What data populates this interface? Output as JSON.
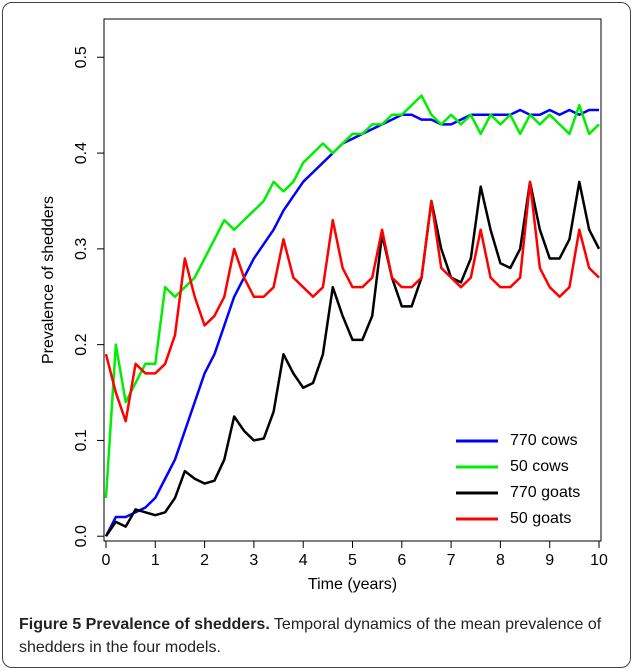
{
  "chart_data": {
    "type": "line",
    "x_label": "Time (years)",
    "y_label": "Prevalence of shedders",
    "x": [
      0,
      0.2,
      0.4,
      0.6,
      0.8,
      1,
      1.2,
      1.4,
      1.6,
      1.8,
      2,
      2.2,
      2.4,
      2.6,
      2.8,
      3,
      3.2,
      3.4,
      3.6,
      3.8,
      4,
      4.2,
      4.4,
      4.6,
      4.8,
      5,
      5.2,
      5.4,
      5.6,
      5.8,
      6,
      6.2,
      6.4,
      6.6,
      6.8,
      7,
      7.2,
      7.4,
      7.6,
      7.8,
      8,
      8.2,
      8.4,
      8.6,
      8.8,
      9,
      9.2,
      9.4,
      9.6,
      9.8,
      10
    ],
    "series": [
      {
        "name": "770 cows",
        "color": "#0000ff",
        "values": [
          0,
          0.02,
          0.02,
          0.025,
          0.03,
          0.04,
          0.06,
          0.08,
          0.11,
          0.14,
          0.17,
          0.19,
          0.22,
          0.25,
          0.27,
          0.29,
          0.305,
          0.32,
          0.34,
          0.355,
          0.37,
          0.38,
          0.39,
          0.4,
          0.41,
          0.415,
          0.42,
          0.425,
          0.43,
          0.435,
          0.44,
          0.44,
          0.435,
          0.435,
          0.43,
          0.43,
          0.435,
          0.44,
          0.44,
          0.44,
          0.44,
          0.44,
          0.445,
          0.44,
          0.44,
          0.445,
          0.44,
          0.445,
          0.44,
          0.445,
          0.445
        ]
      },
      {
        "name": "50 cows",
        "color": "#00ee00",
        "values": [
          0.04,
          0.2,
          0.14,
          0.16,
          0.18,
          0.18,
          0.26,
          0.25,
          0.26,
          0.27,
          0.29,
          0.31,
          0.33,
          0.32,
          0.33,
          0.34,
          0.35,
          0.37,
          0.36,
          0.37,
          0.39,
          0.4,
          0.41,
          0.4,
          0.41,
          0.42,
          0.42,
          0.43,
          0.43,
          0.44,
          0.44,
          0.45,
          0.46,
          0.44,
          0.43,
          0.44,
          0.43,
          0.44,
          0.42,
          0.44,
          0.43,
          0.44,
          0.42,
          0.44,
          0.43,
          0.44,
          0.43,
          0.42,
          0.45,
          0.42,
          0.43
        ]
      },
      {
        "name": "770 goats",
        "color": "#000000",
        "values": [
          0,
          0.015,
          0.01,
          0.028,
          0.025,
          0.022,
          0.025,
          0.04,
          0.068,
          0.06,
          0.055,
          0.058,
          0.08,
          0.125,
          0.11,
          0.1,
          0.102,
          0.13,
          0.19,
          0.17,
          0.155,
          0.16,
          0.19,
          0.26,
          0.23,
          0.205,
          0.205,
          0.23,
          0.315,
          0.27,
          0.24,
          0.24,
          0.27,
          0.35,
          0.3,
          0.27,
          0.265,
          0.29,
          0.365,
          0.32,
          0.285,
          0.28,
          0.3,
          0.37,
          0.32,
          0.29,
          0.29,
          0.31,
          0.37,
          0.32,
          0.3
        ]
      },
      {
        "name": "50 goats",
        "color": "#ff0000",
        "values": [
          0.19,
          0.15,
          0.12,
          0.18,
          0.17,
          0.17,
          0.18,
          0.21,
          0.29,
          0.25,
          0.22,
          0.23,
          0.25,
          0.3,
          0.27,
          0.25,
          0.25,
          0.26,
          0.31,
          0.27,
          0.26,
          0.25,
          0.26,
          0.33,
          0.28,
          0.26,
          0.26,
          0.27,
          0.32,
          0.27,
          0.26,
          0.26,
          0.27,
          0.35,
          0.28,
          0.27,
          0.26,
          0.27,
          0.32,
          0.27,
          0.26,
          0.26,
          0.27,
          0.37,
          0.28,
          0.26,
          0.25,
          0.26,
          0.32,
          0.28,
          0.27
        ]
      }
    ],
    "xlim": [
      -0.04,
      10.04
    ],
    "ylim": [
      -0.005,
      0.54
    ],
    "xticks": [
      0,
      1,
      2,
      3,
      4,
      5,
      6,
      7,
      8,
      9,
      10
    ],
    "yticks": [
      {
        "value": 0,
        "label": "0.0"
      },
      0.1,
      0.2,
      0.3,
      0.4,
      0.5
    ],
    "legend": "bottomright"
  },
  "caption": {
    "label": "Figure 5 Prevalence of shedders.",
    "text": "Temporal dynamics of the mean prevalence of shedders in the four models."
  }
}
